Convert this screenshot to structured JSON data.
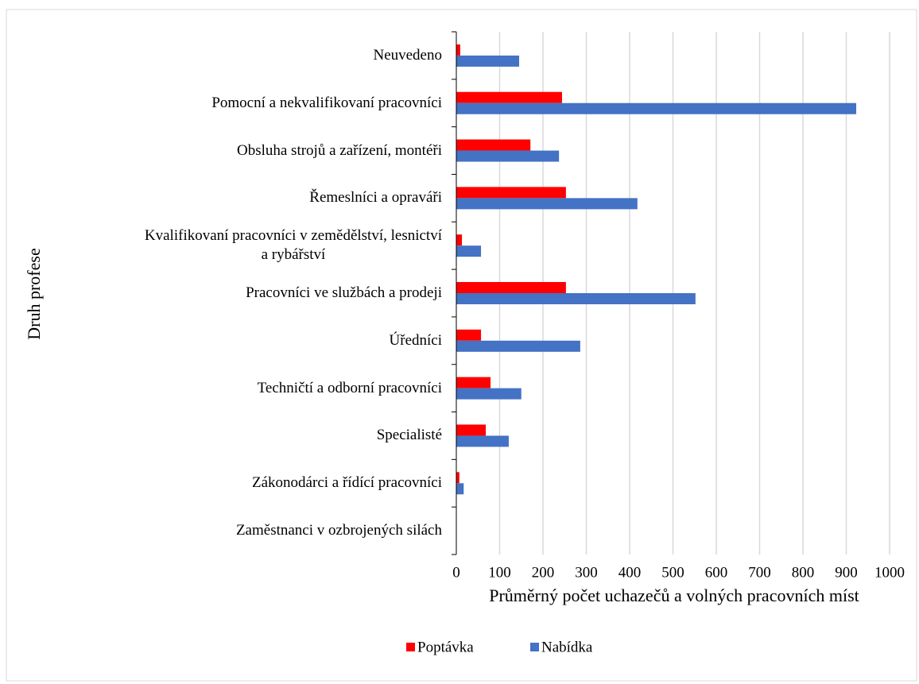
{
  "chart_data": {
    "type": "hbar",
    "x_label": "Průměrný počet uchazečů a volných pracovních míst",
    "y_label": "Druh profese",
    "categories": [
      "Neuvedeno",
      "Pomocní a nekvalifikovaní pracovníci",
      "Obsluha strojů a zařízení, montéři",
      "Řemeslníci a opraváři",
      "Kvalifikovaní pracovníci v zemědělství, lesnictví\na rybářství",
      "Pracovníci ve službách a prodeji",
      "Úředníci",
      "Techničtí a odborní pracovníci",
      "Specialisté",
      "Zákonodárci a řídící pracovníci",
      "Zaměstnanci v ozbrojených silách"
    ],
    "series": [
      {
        "name": "Poptávka",
        "color": "#ff0000",
        "values": [
          9,
          244,
          171,
          253,
          13,
          253,
          57,
          79,
          68,
          7,
          0
        ]
      },
      {
        "name": "Nabídka",
        "color": "#4472c4",
        "values": [
          145,
          923,
          237,
          418,
          57,
          552,
          286,
          150,
          121,
          17,
          0
        ]
      }
    ],
    "xlim": [
      0,
      1000
    ],
    "xticks": [
      0,
      100,
      200,
      300,
      400,
      500,
      600,
      700,
      800,
      900,
      1000
    ],
    "grid": true,
    "legend": "bottom"
  }
}
